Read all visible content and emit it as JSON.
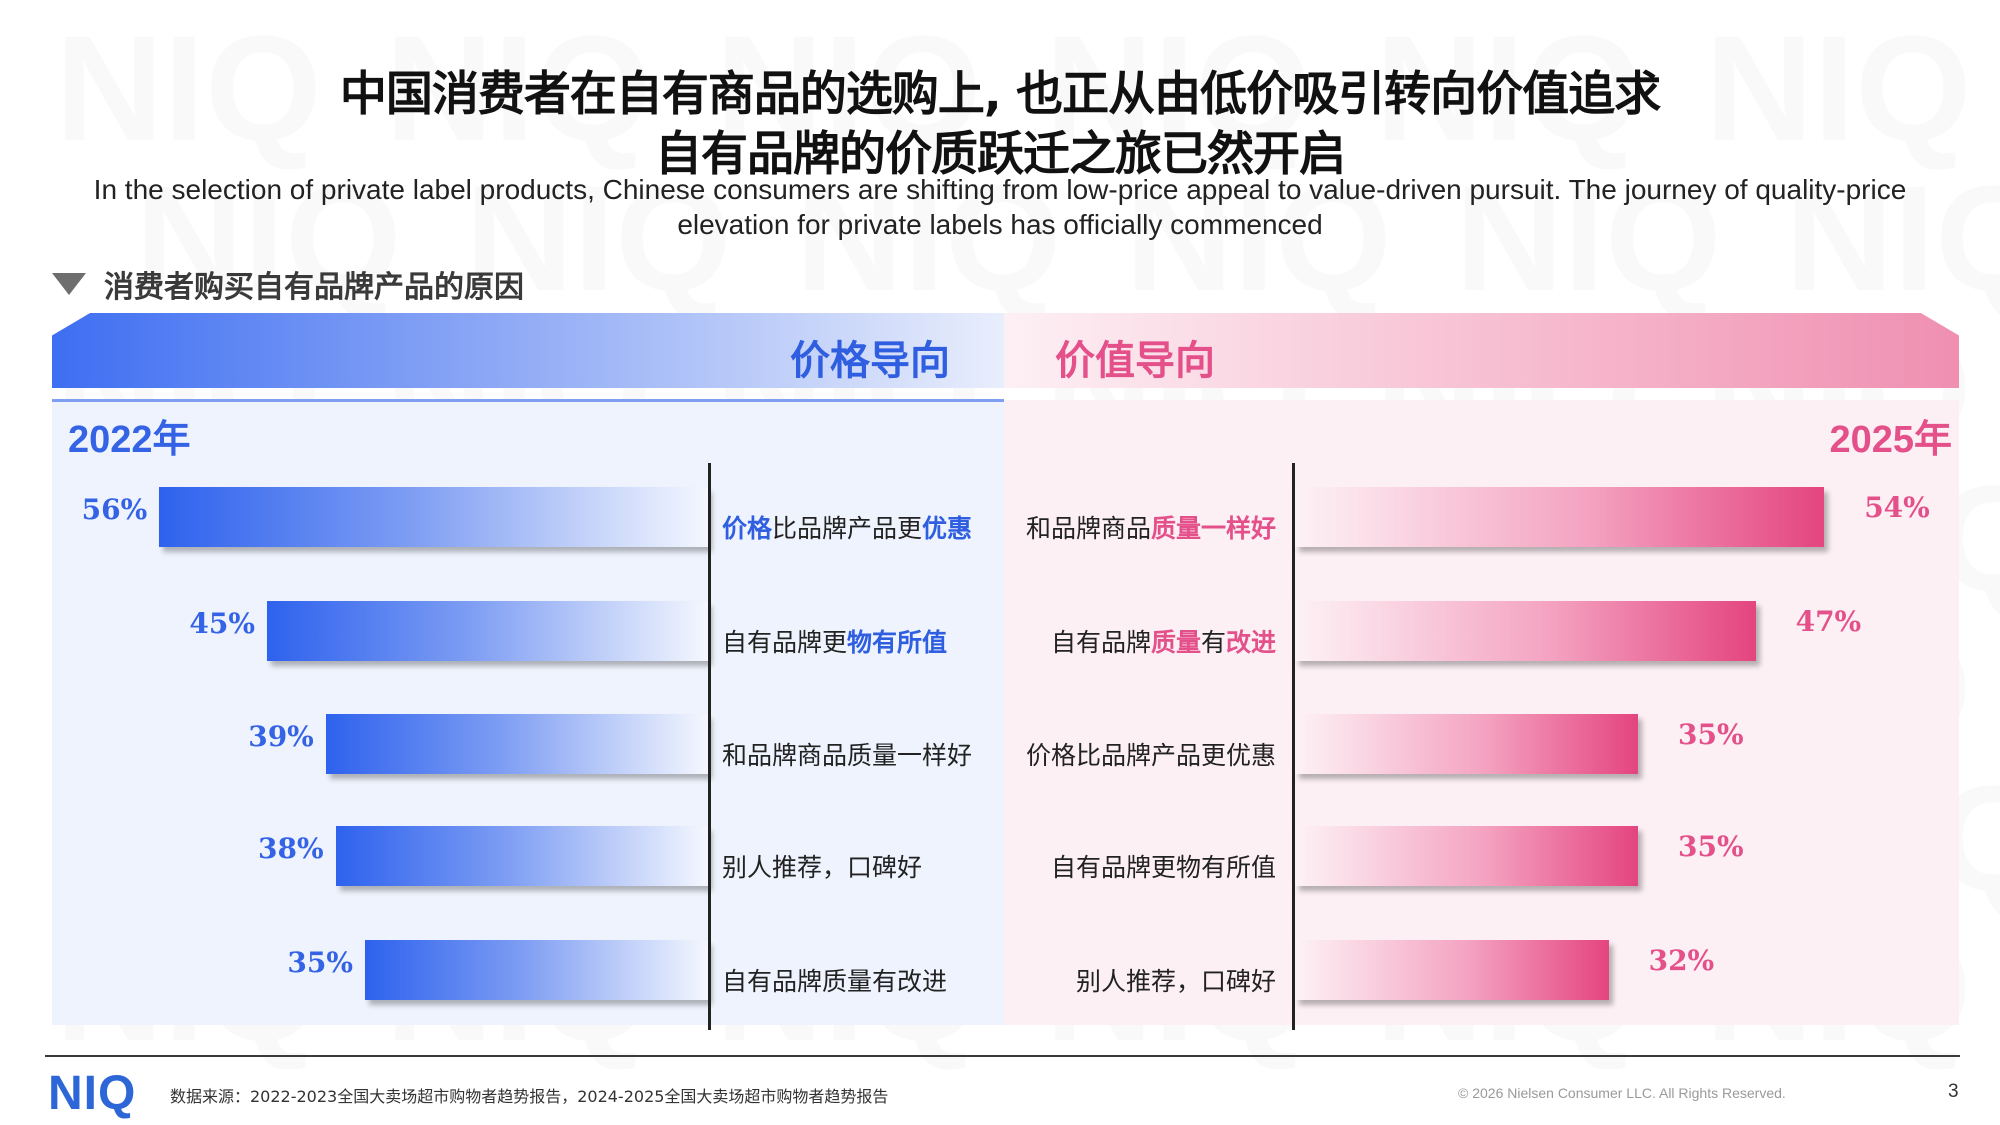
{
  "title": {
    "line1": "中国消费者在自有商品的选购上, 也正从由低价吸引转向价值追求",
    "line2": "自有品牌的价质跃迁之旅已然开启"
  },
  "subtitle": "In the selection of private label products, Chinese consumers are shifting from low-price appeal to value-driven pursuit. The journey of quality-price elevation for private labels has officially commenced",
  "section": {
    "label": "消费者购买自有品牌产品的原因",
    "icon": "triangle-down-icon"
  },
  "banners": {
    "left": "价格导向",
    "right": "价值导向"
  },
  "watermark": "NIQ",
  "colors": {
    "blue": "#2e62ee",
    "pink": "#e4457f"
  },
  "chart_data": [
    {
      "type": "bar",
      "orientation": "horizontal",
      "title": "2022年",
      "categories": [
        {
          "plain": "",
          "hl": "价格",
          "plain2": "比品牌产品更",
          "hl2": "优惠"
        },
        {
          "plain": "自有品牌更",
          "hl": "物有所值",
          "plain2": "",
          "hl2": ""
        },
        {
          "plain": "和品牌商品质量一样好",
          "hl": "",
          "plain2": "",
          "hl2": ""
        },
        {
          "plain": "别人推荐，口碑好",
          "hl": "",
          "plain2": "",
          "hl2": ""
        },
        {
          "plain": "自有品牌质量有改进",
          "hl": "",
          "plain2": "",
          "hl2": ""
        }
      ],
      "values": [
        56,
        45,
        39,
        38,
        35
      ],
      "labels": [
        "56%",
        "45%",
        "39%",
        "38%",
        "35%"
      ],
      "unit": "%"
    },
    {
      "type": "bar",
      "orientation": "horizontal",
      "title": "2025年",
      "categories": [
        {
          "plain": "和品牌商品",
          "hl": "质量一样好",
          "plain2": "",
          "hl2": ""
        },
        {
          "plain": "自有品牌",
          "hl": "质量",
          "plain2": "有",
          "hl2": "改进"
        },
        {
          "plain": "价格比品牌产品更优惠",
          "hl": "",
          "plain2": "",
          "hl2": ""
        },
        {
          "plain": "自有品牌更物有所值",
          "hl": "",
          "plain2": "",
          "hl2": ""
        },
        {
          "plain": "别人推荐，口碑好",
          "hl": "",
          "plain2": "",
          "hl2": ""
        }
      ],
      "values": [
        54,
        47,
        35,
        35,
        32
      ],
      "labels": [
        "54%",
        "47%",
        "35%",
        "35%",
        "32%"
      ],
      "unit": "%"
    }
  ],
  "footer": {
    "logo": "NIQ",
    "source": "数据来源：2022-2023全国大卖场超市购物者趋势报告，2024-2025全国大卖场超市购物者趋势报告",
    "copyright": "© 2026 Nielsen Consumer LLC. All Rights Reserved.",
    "page": "3"
  }
}
